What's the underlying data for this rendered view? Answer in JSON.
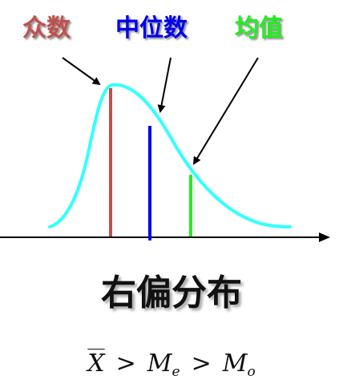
{
  "labels": {
    "mode": "众数",
    "median": "中位数",
    "mean": "均值"
  },
  "title": "右偏分布",
  "formula": {
    "mean_symbol": "X",
    "gt1": ">",
    "median_symbol": "M",
    "median_sub": "e",
    "gt2": ">",
    "mode_symbol": "M",
    "mode_sub": "o"
  },
  "colors": {
    "mode": "#c0504d",
    "median": "#0000ee",
    "mean": "#22ee22",
    "curve": "#33ffff",
    "axis": "#000000",
    "text": "#111111"
  }
}
